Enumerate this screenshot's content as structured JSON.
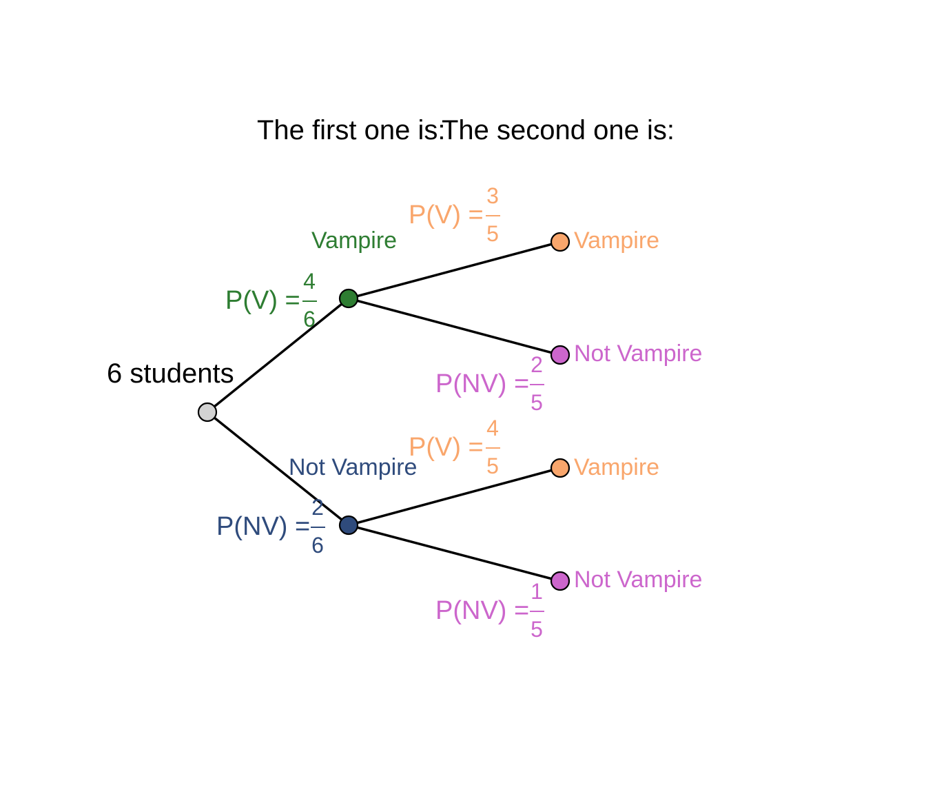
{
  "headers": {
    "first": "The first one is:",
    "second": "The second one is:"
  },
  "root": {
    "label": "6 students",
    "color": "#d3d3d3"
  },
  "colors": {
    "level1_vampire": "#2e7d32",
    "level1_not_vampire": "#2f4b7c",
    "level2_vampire": "#f9a66c",
    "level2_not_vampire": "#cc66cc"
  },
  "level1": {
    "vampire": {
      "label": "Vampire",
      "prob_prefix": "P(V) =",
      "num": "4",
      "den": "6"
    },
    "not_vampire": {
      "label": "Not Vampire",
      "prob_prefix": "P(NV) =",
      "num": "2",
      "den": "6"
    }
  },
  "level2": {
    "vv": {
      "label": "Vampire",
      "prob_prefix": "P(V) =",
      "num": "3",
      "den": "5"
    },
    "vn": {
      "label": "Not Vampire",
      "prob_prefix": "P(NV) =",
      "num": "2",
      "den": "5"
    },
    "nv": {
      "label": "Vampire",
      "prob_prefix": "P(V) =",
      "num": "4",
      "den": "5"
    },
    "nn": {
      "label": "Not Vampire",
      "prob_prefix": "P(NV) =",
      "num": "1",
      "den": "5"
    }
  }
}
